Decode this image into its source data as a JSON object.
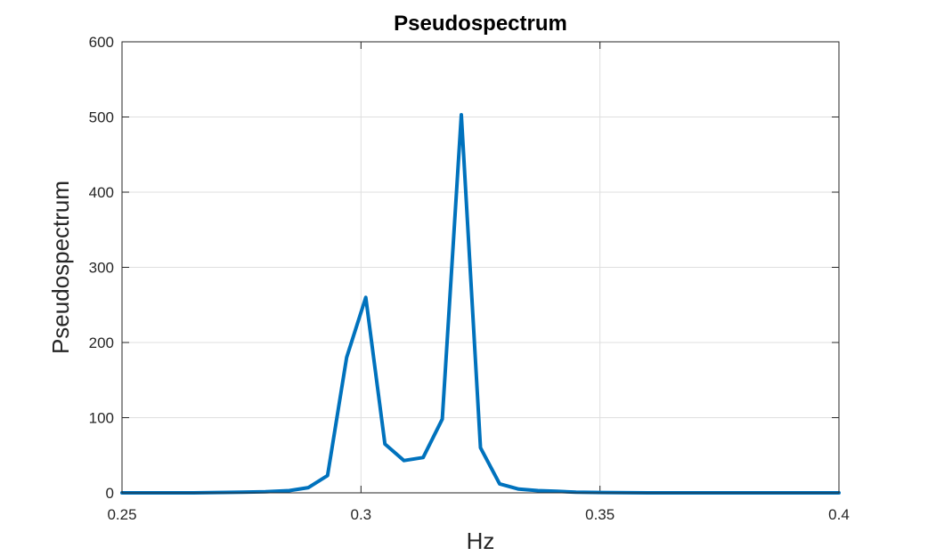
{
  "chart_data": {
    "type": "line",
    "title": "Pseudospectrum",
    "xlabel": "Hz",
    "ylabel": "Pseudospectrum",
    "xlim": [
      0.25,
      0.4
    ],
    "ylim": [
      0,
      600
    ],
    "xticks": [
      "0.25",
      "0.3",
      "0.35",
      "0.4"
    ],
    "yticks": [
      "0",
      "100",
      "200",
      "300",
      "400",
      "500",
      "600"
    ],
    "xtick_values": [
      0.25,
      0.3,
      0.35,
      0.4
    ],
    "ytick_values": [
      0,
      100,
      200,
      300,
      400,
      500,
      600
    ],
    "grid": true,
    "series": [
      {
        "color": "#0072bd",
        "x": [
          0.25,
          0.255,
          0.26,
          0.265,
          0.27,
          0.275,
          0.28,
          0.285,
          0.289,
          0.293,
          0.297,
          0.301,
          0.305,
          0.309,
          0.313,
          0.317,
          0.321,
          0.325,
          0.329,
          0.333,
          0.337,
          0.341,
          0.345,
          0.35,
          0.36,
          0.37,
          0.38,
          0.39,
          0.4
        ],
        "y": [
          0,
          0,
          0,
          0,
          0.5,
          1,
          1.5,
          3,
          7,
          23,
          180,
          260,
          65,
          43,
          47,
          98,
          503,
          60,
          12,
          5,
          3,
          2,
          1,
          0.5,
          0,
          0,
          0,
          0,
          0
        ]
      }
    ]
  }
}
